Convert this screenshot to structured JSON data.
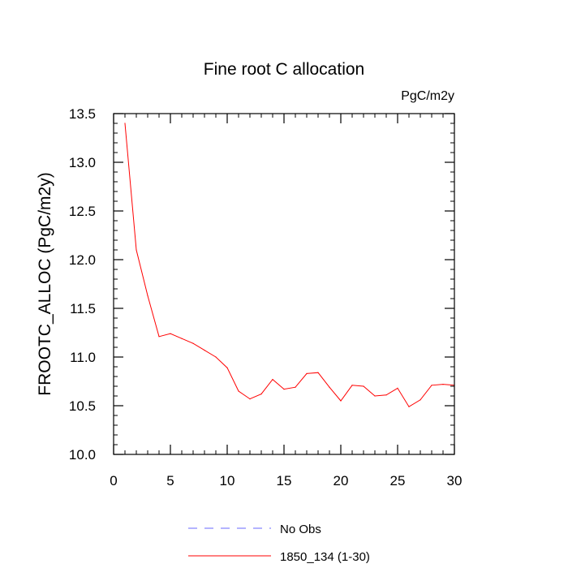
{
  "chart_data": {
    "type": "line",
    "title": "Fine root C allocation",
    "units_label": "PgC/m2y",
    "xlabel": "",
    "ylabel": "FROOTC_ALLOC  (PgC/m2y)",
    "xlim": [
      0,
      30
    ],
    "ylim": [
      10.0,
      13.5
    ],
    "x_ticks": [
      0,
      5,
      10,
      15,
      20,
      25,
      30
    ],
    "x_tick_labels": [
      "0",
      "5",
      "10",
      "15",
      "20",
      "25",
      "30"
    ],
    "y_ticks": [
      10.0,
      10.5,
      11.0,
      11.5,
      12.0,
      12.5,
      13.0,
      13.5
    ],
    "y_tick_labels": [
      "10.0",
      "10.5",
      "11.0",
      "11.5",
      "12.0",
      "12.5",
      "13.0",
      "13.5"
    ],
    "x_minor_step": 1,
    "y_minor_step": 0.1,
    "grid": false,
    "legend_position": "bottom-center",
    "series": [
      {
        "name": "1850_134 (1-30)",
        "color": "#ff0000",
        "dash": "solid",
        "x": [
          1,
          2,
          3,
          4,
          5,
          6,
          7,
          8,
          9,
          10,
          11,
          12,
          13,
          14,
          15,
          16,
          17,
          18,
          19,
          20,
          21,
          22,
          23,
          24,
          25,
          26,
          27,
          28,
          29,
          30
        ],
        "values": [
          13.4,
          12.1,
          11.63,
          11.21,
          11.24,
          11.19,
          11.14,
          11.07,
          11.0,
          10.89,
          10.65,
          10.57,
          10.62,
          10.77,
          10.67,
          10.69,
          10.83,
          10.84,
          10.69,
          10.55,
          10.71,
          10.7,
          10.6,
          10.61,
          10.68,
          10.49,
          10.56,
          10.71,
          10.72,
          10.71
        ]
      },
      {
        "name": "No Obs",
        "color": "#6a6aff",
        "dash": "dashed",
        "x": [],
        "values": []
      }
    ]
  }
}
